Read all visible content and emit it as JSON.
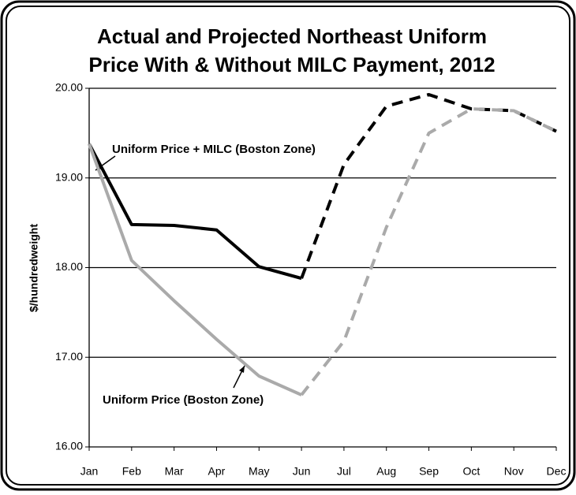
{
  "chart_data": {
    "type": "line",
    "title": [
      "Actual and Projected Northeast Uniform",
      "Price With & Without MILC Payment, 2012"
    ],
    "y_label": "$/hundredweight",
    "categories": [
      "Jan",
      "Feb",
      "Mar",
      "Apr",
      "May",
      "Jun",
      "Jul",
      "Aug",
      "Sep",
      "Oct",
      "Nov",
      "Dec"
    ],
    "projected_from": "Jun",
    "series": [
      {
        "name": "Uniform Price + MILC (Boston Zone)",
        "color": "#000000",
        "values": [
          19.38,
          18.48,
          18.47,
          18.42,
          18.01,
          17.88,
          19.15,
          19.8,
          19.93,
          19.77,
          19.75,
          19.52
        ]
      },
      {
        "name": "Uniform Price (Boston Zone)",
        "color": "#aaaaaa",
        "values": [
          19.38,
          18.08,
          17.63,
          17.2,
          16.79,
          16.58,
          17.18,
          18.45,
          19.5,
          19.77,
          19.75,
          19.52
        ]
      }
    ],
    "ylim": [
      16,
      20
    ],
    "yticks": [
      {
        "value": 16,
        "label": "16.00"
      },
      {
        "value": 17,
        "label": "17.00"
      },
      {
        "value": 18,
        "label": "18.00"
      },
      {
        "value": 19,
        "label": "19.00"
      },
      {
        "value": 20,
        "label": "20.00"
      }
    ],
    "grid": true
  }
}
